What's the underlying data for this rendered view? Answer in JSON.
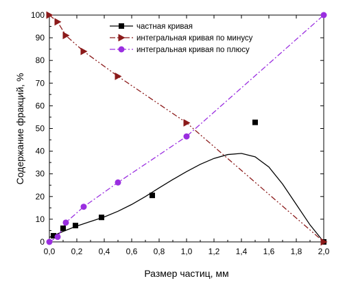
{
  "chart_data": {
    "type": "scatter",
    "xlabel": "Размер частиц, мм",
    "ylabel": "Содержание фракций, %",
    "xlim": [
      0.0,
      2.0
    ],
    "ylim": [
      0,
      100
    ],
    "xticks": [
      "0,0",
      "0,2",
      "0,4",
      "0,6",
      "0,8",
      "1,0",
      "1,2",
      "1,4",
      "1,6",
      "1,8",
      "2,0"
    ],
    "yticks": [
      "0",
      "10",
      "20",
      "30",
      "40",
      "50",
      "60",
      "70",
      "80",
      "90",
      "100"
    ],
    "legend_position": "top-center",
    "series": [
      {
        "name": "частная кривая",
        "marker": "square",
        "color": "#000000",
        "line_style": "solid",
        "points": [
          [
            0.03,
            2.7
          ],
          [
            0.1,
            6.0
          ],
          [
            0.19,
            7.2
          ],
          [
            0.38,
            10.8
          ],
          [
            0.75,
            20.5
          ],
          [
            1.5,
            52.7
          ],
          [
            2.0,
            0.0
          ]
        ],
        "fit_curve": [
          [
            0.0,
            2.0
          ],
          [
            0.1,
            4.6
          ],
          [
            0.2,
            7.0
          ],
          [
            0.3,
            9.0
          ],
          [
            0.4,
            11.0
          ],
          [
            0.5,
            13.5
          ],
          [
            0.6,
            16.5
          ],
          [
            0.7,
            20.0
          ],
          [
            0.8,
            23.8
          ],
          [
            0.9,
            27.5
          ],
          [
            1.0,
            31.0
          ],
          [
            1.1,
            34.2
          ],
          [
            1.2,
            36.8
          ],
          [
            1.3,
            38.5
          ],
          [
            1.4,
            39.0
          ],
          [
            1.5,
            37.5
          ],
          [
            1.6,
            33.0
          ],
          [
            1.7,
            25.5
          ],
          [
            1.8,
            16.5
          ],
          [
            1.9,
            7.5
          ],
          [
            2.0,
            0.0
          ]
        ]
      },
      {
        "name": "интегральная кривая по минусу",
        "marker": "triangle-right",
        "color": "#8b1a1a",
        "line_style": "dash-dot-dot",
        "points": [
          [
            0.0,
            100.0
          ],
          [
            0.06,
            97.0
          ],
          [
            0.12,
            91.0
          ],
          [
            0.25,
            84.0
          ],
          [
            0.5,
            73.0
          ],
          [
            1.0,
            52.5
          ],
          [
            2.0,
            0.0
          ]
        ]
      },
      {
        "name": "интегральная кривая по плюсу",
        "marker": "circle",
        "color": "#9a2ee0",
        "line_style": "dash-dot",
        "points": [
          [
            0.0,
            0.0
          ],
          [
            0.06,
            2.2
          ],
          [
            0.12,
            8.5
          ],
          [
            0.25,
            15.5
          ],
          [
            0.5,
            26.2
          ],
          [
            1.0,
            46.5
          ],
          [
            2.0,
            100.0
          ]
        ]
      }
    ]
  }
}
